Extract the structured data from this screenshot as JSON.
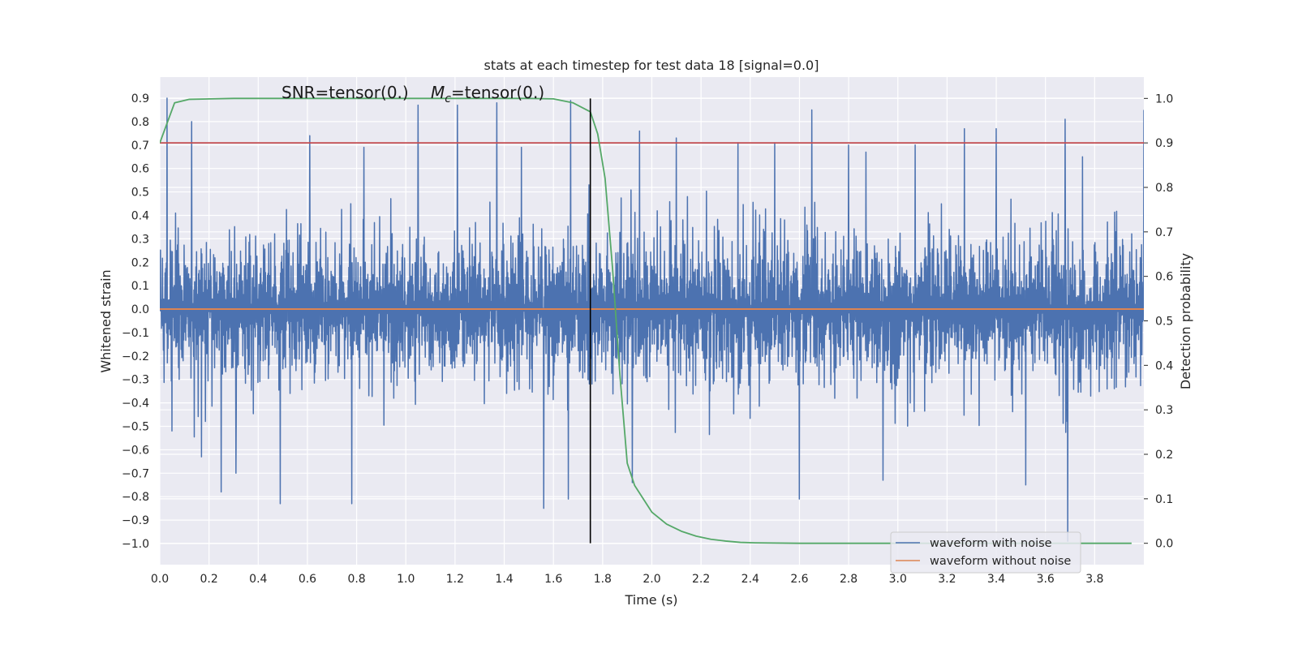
{
  "chart_data": {
    "type": "line",
    "title": "stats at each timestep for test data 18 [signal=0.0]",
    "xlabel": "Time (s)",
    "ylabel": "Whitened strain",
    "y2label": "Detection probability",
    "xlim": [
      0.0,
      4.0
    ],
    "ylim": [
      -1.09,
      0.99
    ],
    "y2lim": [
      -0.048,
      1.048
    ],
    "x_ticks": [
      "0.0",
      "0.2",
      "0.4",
      "0.6",
      "0.8",
      "1.0",
      "1.2",
      "1.4",
      "1.6",
      "1.8",
      "2.0",
      "2.2",
      "2.4",
      "2.6",
      "2.8",
      "3.0",
      "3.2",
      "3.4",
      "3.6",
      "3.8"
    ],
    "y_ticks": [
      "0.9",
      "0.8",
      "0.7",
      "0.6",
      "0.5",
      "0.4",
      "0.3",
      "0.2",
      "0.1",
      "0.0",
      "−0.1",
      "−0.2",
      "−0.3",
      "−0.4",
      "−0.5",
      "−0.6",
      "−0.7",
      "−0.8",
      "−0.9",
      "−1.0"
    ],
    "y2_ticks": [
      "1.0",
      "0.9",
      "0.8",
      "0.7",
      "0.6",
      "0.5",
      "0.4",
      "0.3",
      "0.2",
      "0.1",
      "0.0"
    ],
    "grid": true,
    "annotation": {
      "snr": "SNR=tensor(0.)",
      "mc_symbol": "M",
      "mc_sub": "c",
      "mc_value": "=tensor(0.)"
    },
    "series": [
      {
        "name": "waveform with noise",
        "color": "#4c72b0",
        "axis": "left",
        "noise": {
          "envelope": 0.45,
          "samples": 3000
        },
        "peaks": [
          [
            0.03,
            0.9
          ],
          [
            0.05,
            -0.52
          ],
          [
            0.13,
            0.8
          ],
          [
            0.17,
            -0.63
          ],
          [
            0.25,
            -0.78
          ],
          [
            0.31,
            -0.7
          ],
          [
            0.49,
            -0.83
          ],
          [
            0.61,
            0.74
          ],
          [
            0.78,
            -0.83
          ],
          [
            0.83,
            0.69
          ],
          [
            1.05,
            0.87
          ],
          [
            1.21,
            0.87
          ],
          [
            1.37,
            0.88
          ],
          [
            1.47,
            0.69
          ],
          [
            1.56,
            -0.85
          ],
          [
            1.66,
            -0.81
          ],
          [
            1.67,
            0.89
          ],
          [
            1.92,
            -0.74
          ],
          [
            1.95,
            0.76
          ],
          [
            2.1,
            0.73
          ],
          [
            2.35,
            0.71
          ],
          [
            2.5,
            0.71
          ],
          [
            2.6,
            -0.81
          ],
          [
            2.65,
            0.85
          ],
          [
            2.8,
            0.7
          ],
          [
            2.87,
            0.67
          ],
          [
            2.94,
            -0.73
          ],
          [
            3.07,
            0.7
          ],
          [
            3.27,
            0.77
          ],
          [
            3.4,
            0.77
          ],
          [
            3.52,
            -0.75
          ],
          [
            3.68,
            0.81
          ],
          [
            3.69,
            -0.99
          ],
          [
            3.75,
            0.65
          ],
          [
            4.0,
            0.85
          ]
        ]
      },
      {
        "name": "waveform without noise",
        "color": "#dd8452",
        "axis": "left",
        "x": [
          0.0,
          4.0
        ],
        "y": [
          0.0,
          0.0
        ]
      },
      {
        "color": "#55a868",
        "axis": "right",
        "x": [
          0.0,
          0.06,
          0.12,
          0.3,
          0.6,
          0.9,
          1.2,
          1.5,
          1.6,
          1.68,
          1.75,
          1.78,
          1.81,
          1.84,
          1.87,
          1.9,
          1.93,
          2.0,
          2.06,
          2.12,
          2.18,
          2.24,
          2.3,
          2.36,
          2.42,
          2.6,
          3.0,
          3.5,
          3.95
        ],
        "y": [
          0.9,
          0.99,
          0.998,
          1.0,
          1.0,
          1.0,
          1.0,
          1.0,
          0.999,
          0.99,
          0.97,
          0.92,
          0.82,
          0.62,
          0.38,
          0.18,
          0.13,
          0.07,
          0.043,
          0.027,
          0.016,
          0.009,
          0.005,
          0.002,
          0.001,
          0.0,
          0.0,
          0.0,
          0.0
        ]
      }
    ],
    "hlines": [
      {
        "y2": 0.9,
        "color": "#c44e52"
      }
    ],
    "vlines": [
      {
        "x": 1.75,
        "color": "#000000"
      }
    ],
    "legend": {
      "position": "bottom-right"
    }
  }
}
